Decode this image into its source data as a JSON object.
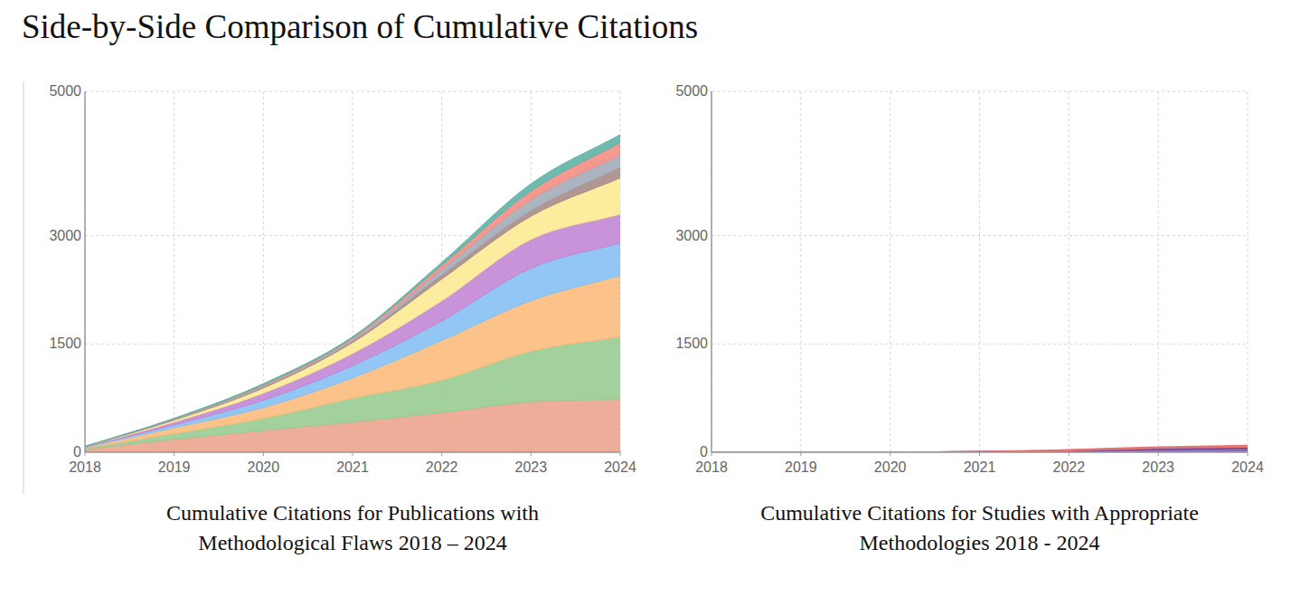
{
  "title": "Side-by-Side Comparison of Cumulative Citations",
  "chart_data": [
    {
      "type": "area",
      "stacked": true,
      "grid": true,
      "title": "Cumulative Citations for Publications with Methodological Flaws 2018 – 2024",
      "x": [
        2018,
        2019,
        2020,
        2021,
        2022,
        2023,
        2024
      ],
      "xlim": [
        2018,
        2024
      ],
      "xticks": [
        2018,
        2019,
        2020,
        2021,
        2022,
        2023,
        2024
      ],
      "ylim": [
        0,
        5000
      ],
      "yticks": [
        0,
        1500,
        3000,
        5000
      ],
      "series": [
        {
          "color": "#eba48e",
          "values": [
            40,
            180,
            300,
            420,
            550,
            700,
            730
          ]
        },
        {
          "color": "#99cc93",
          "values": [
            15,
            80,
            170,
            330,
            450,
            700,
            870
          ]
        },
        {
          "color": "#fbbd7c",
          "values": [
            10,
            80,
            150,
            280,
            550,
            700,
            850
          ]
        },
        {
          "color": "#86c0f3",
          "values": [
            5,
            40,
            100,
            170,
            270,
            450,
            450
          ]
        },
        {
          "color": "#c287d4",
          "values": [
            5,
            40,
            100,
            170,
            280,
            400,
            400
          ]
        },
        {
          "color": "#fcea93",
          "values": [
            2,
            25,
            70,
            150,
            300,
            320,
            500
          ]
        },
        {
          "color": "#a98c88",
          "values": [
            1,
            8,
            15,
            20,
            60,
            80,
            150
          ]
        },
        {
          "color": "#a3adb8",
          "values": [
            1,
            7,
            15,
            25,
            70,
            150,
            170
          ]
        },
        {
          "color": "#f28e86",
          "values": [
            1,
            5,
            15,
            20,
            60,
            120,
            170
          ]
        },
        {
          "color": "#5fb3a6",
          "values": [
            0,
            5,
            15,
            15,
            40,
            100,
            110
          ]
        }
      ]
    },
    {
      "type": "area",
      "stacked": true,
      "grid": true,
      "title": "Cumulative Citations for Studies with Appropriate Methodologies 2018 - 2024",
      "x": [
        2018,
        2019,
        2020,
        2021,
        2022,
        2023,
        2024
      ],
      "xlim": [
        2018,
        2024
      ],
      "xticks": [
        2018,
        2019,
        2020,
        2021,
        2022,
        2023,
        2024
      ],
      "ylim": [
        0,
        5000
      ],
      "yticks": [
        0,
        1500,
        3000,
        5000
      ],
      "series": [
        {
          "color": "#5fb3c8",
          "values": [
            0,
            0,
            0,
            2,
            10,
            20,
            25
          ]
        },
        {
          "color": "#8e6bb8",
          "values": [
            0,
            0,
            0,
            2,
            10,
            25,
            30
          ]
        },
        {
          "color": "#6a4c93",
          "values": [
            0,
            0,
            0,
            1,
            5,
            15,
            20
          ]
        },
        {
          "color": "#e57373",
          "values": [
            0,
            0,
            0,
            1,
            5,
            10,
            15
          ]
        }
      ]
    }
  ]
}
